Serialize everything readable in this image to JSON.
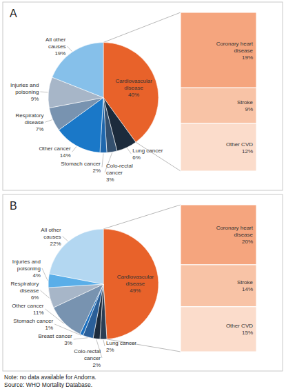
{
  "chart_data": [
    {
      "type": "pie",
      "title": "A",
      "categories": [
        "Cardiovascular disease",
        "Lung cancer",
        "Colo-rectal cancer",
        "Stomach cancer",
        "Other cancer",
        "Respiratory disease",
        "Injuries and poisoning",
        "All other causes"
      ],
      "values": [
        40,
        6,
        3,
        2,
        14,
        7,
        9,
        19
      ],
      "value_labels": [
        "40%",
        "6%",
        "3%",
        "2%",
        "14%",
        "7%",
        "9%",
        "19%"
      ],
      "colors": [
        "#e8622a",
        "#1c2b3c",
        "#34506e",
        "#1f67ad",
        "#1a78c8",
        "#7893b0",
        "#a7b6c8",
        "#86c0ea"
      ],
      "data_labels": true,
      "breakdown": {
        "categories": [
          "Coronary heart disease",
          "Stroke",
          "Other CVD"
        ],
        "values": [
          19,
          9,
          12
        ],
        "value_labels": [
          "19%",
          "9%",
          "12%"
        ],
        "colors": [
          "#f5a57e",
          "#f8c3a6",
          "#fbdccb"
        ]
      }
    },
    {
      "type": "pie",
      "title": "B",
      "categories": [
        "Cardiovascular disease",
        "Lung cancer",
        "Colo-rectal cancer",
        "Breast cancer",
        "Stomach cancer",
        "Other cancer",
        "Respiratory disease",
        "Injuries and poisoning",
        "All other causes"
      ],
      "values": [
        49,
        2,
        2,
        3,
        1,
        11,
        6,
        4,
        22
      ],
      "value_labels": [
        "49%",
        "2%",
        "2%",
        "3%",
        "1%",
        "11%",
        "6%",
        "4%",
        "22%"
      ],
      "colors": [
        "#e8622a",
        "#2b3e54",
        "#1c2b3c",
        "#2a5f99",
        "#1a6fc0",
        "#7893b0",
        "#a7b6c8",
        "#5aaee8",
        "#b3d7f1"
      ],
      "data_labels": true,
      "breakdown": {
        "categories": [
          "Coronary heart disease",
          "Stroke",
          "Other CVD"
        ],
        "values": [
          20,
          14,
          15
        ],
        "value_labels": [
          "20%",
          "14%",
          "15%"
        ],
        "colors": [
          "#f5a57e",
          "#f8c3a6",
          "#fbdccb"
        ]
      }
    }
  ],
  "notes": [
    "Note: no data available for Andorra.",
    "Source: WHO Mortality Database."
  ]
}
